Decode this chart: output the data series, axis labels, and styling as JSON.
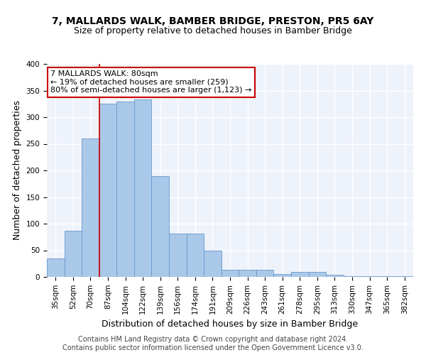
{
  "title": "7, MALLARDS WALK, BAMBER BRIDGE, PRESTON, PR5 6AY",
  "subtitle": "Size of property relative to detached houses in Bamber Bridge",
  "xlabel": "Distribution of detached houses by size in Bamber Bridge",
  "ylabel": "Number of detached properties",
  "categories": [
    "35sqm",
    "52sqm",
    "70sqm",
    "87sqm",
    "104sqm",
    "122sqm",
    "139sqm",
    "156sqm",
    "174sqm",
    "191sqm",
    "209sqm",
    "226sqm",
    "243sqm",
    "261sqm",
    "278sqm",
    "295sqm",
    "313sqm",
    "330sqm",
    "347sqm",
    "365sqm",
    "382sqm"
  ],
  "values": [
    35,
    87,
    260,
    325,
    330,
    333,
    190,
    81,
    81,
    50,
    13,
    14,
    14,
    6,
    9,
    9,
    4,
    1,
    1,
    1,
    1
  ],
  "bar_color": "#aac8e8",
  "bar_edge_color": "#6699cc",
  "vline_color": "#cc0000",
  "vline_x": 2.5,
  "annotation_text": "7 MALLARDS WALK: 80sqm\n← 19% of detached houses are smaller (259)\n80% of semi-detached houses are larger (1,123) →",
  "annotation_box_color": "#ffffff",
  "annotation_box_edge_color": "#cc0000",
  "background_color": "#eef2fa",
  "grid_color": "#ffffff",
  "ylim": [
    0,
    400
  ],
  "yticks": [
    0,
    50,
    100,
    150,
    200,
    250,
    300,
    350,
    400
  ],
  "footer": "Contains HM Land Registry data © Crown copyright and database right 2024.\nContains public sector information licensed under the Open Government Licence v3.0.",
  "title_fontsize": 10,
  "subtitle_fontsize": 9,
  "axis_label_fontsize": 9,
  "tick_fontsize": 7.5,
  "annotation_fontsize": 8,
  "footer_fontsize": 7
}
